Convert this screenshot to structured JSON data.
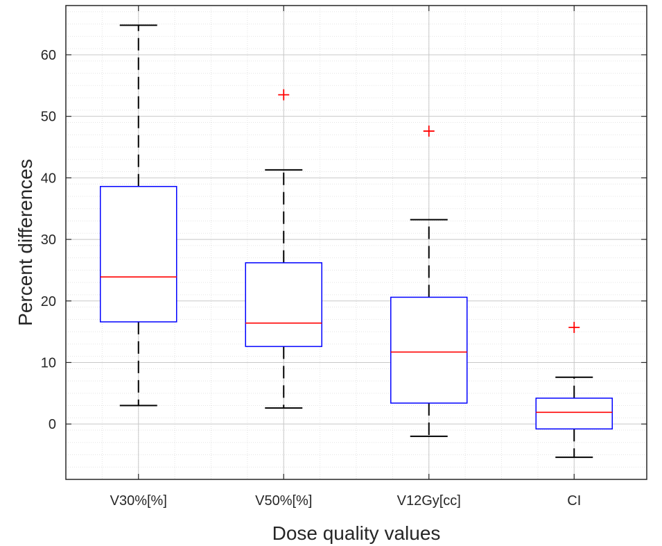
{
  "chart_data": {
    "type": "boxplot",
    "title": "",
    "xlabel": "Dose quality values",
    "ylabel": "Percent differences",
    "categories": [
      "V30%[%]",
      "V50%[%]",
      "V12Gy[cc]",
      "CI"
    ],
    "ylim": [
      -9,
      68
    ],
    "yticks": [
      0,
      10,
      20,
      30,
      40,
      50,
      60
    ],
    "grid": true,
    "minor_grid": true,
    "boxes": [
      {
        "whisker_low": 3,
        "q1": 16.6,
        "median": 23.9,
        "q3": 38.6,
        "whisker_high": 64.8,
        "outliers": []
      },
      {
        "whisker_low": 2.6,
        "q1": 12.6,
        "median": 16.4,
        "q3": 26.2,
        "whisker_high": 41.3,
        "outliers": [
          53.5
        ]
      },
      {
        "whisker_low": -2,
        "q1": 3.4,
        "median": 11.7,
        "q3": 20.6,
        "whisker_high": 33.2,
        "outliers": [
          47.6
        ]
      },
      {
        "whisker_low": -5.4,
        "q1": -0.8,
        "median": 1.9,
        "q3": 4.2,
        "whisker_high": 7.6,
        "outliers": [
          15.7
        ]
      }
    ],
    "colors": {
      "box": "#0000ff",
      "median": "#ff0000",
      "outlier": "#ff0000",
      "whisker": "#000000"
    }
  }
}
